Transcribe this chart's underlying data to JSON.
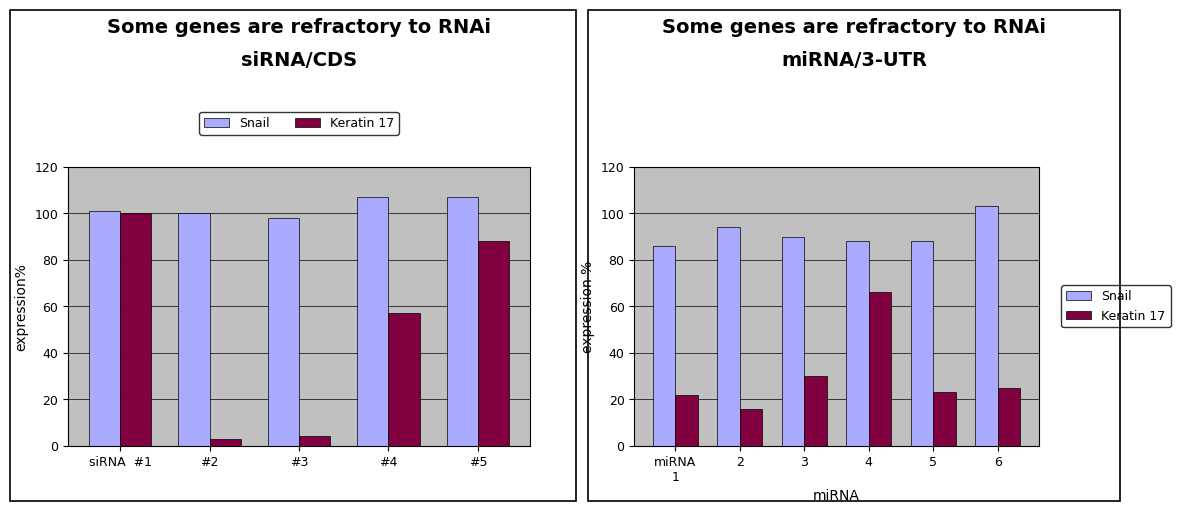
{
  "chart1": {
    "title_line1": "Some genes are refractory to RNAi",
    "title_line2": "siRNA/CDS",
    "categories": [
      "siRNA  #1",
      "#2",
      "#3",
      "#4",
      "#5"
    ],
    "snail_values": [
      101,
      100,
      98,
      107,
      107
    ],
    "keratin_values": [
      100,
      3,
      4,
      57,
      88
    ],
    "ylabel": "expression%",
    "ylim": [
      0,
      120
    ],
    "yticks": [
      0,
      20,
      40,
      60,
      80,
      100,
      120
    ],
    "legend_labels": [
      "Snail",
      "Keratin 17"
    ]
  },
  "chart2": {
    "title_line1": "Some genes are refractory to RNAi",
    "title_line2": "miRNA/3-UTR",
    "categories": [
      "miRNA\n1",
      "2",
      "3",
      "4",
      "5",
      "6"
    ],
    "snail_values": [
      86,
      94,
      90,
      88,
      88,
      103
    ],
    "keratin_values": [
      22,
      16,
      30,
      66,
      23,
      25
    ],
    "ylabel": "expression %",
    "xlabel": "miRNA",
    "ylim": [
      0,
      120
    ],
    "yticks": [
      0,
      20,
      40,
      60,
      80,
      100,
      120
    ],
    "legend_labels": [
      "Snail",
      "Keratin 17"
    ]
  },
  "snail_color": "#AAAAFF",
  "keratin_color": "#800040",
  "bar_width": 0.35,
  "plot_bg_color": "#C0C0C0",
  "fig_bg_color": "#FFFFFF",
  "title_fontsize": 14,
  "subtitle_fontsize": 14,
  "axis_label_fontsize": 10,
  "tick_fontsize": 9,
  "legend_fontsize": 9
}
